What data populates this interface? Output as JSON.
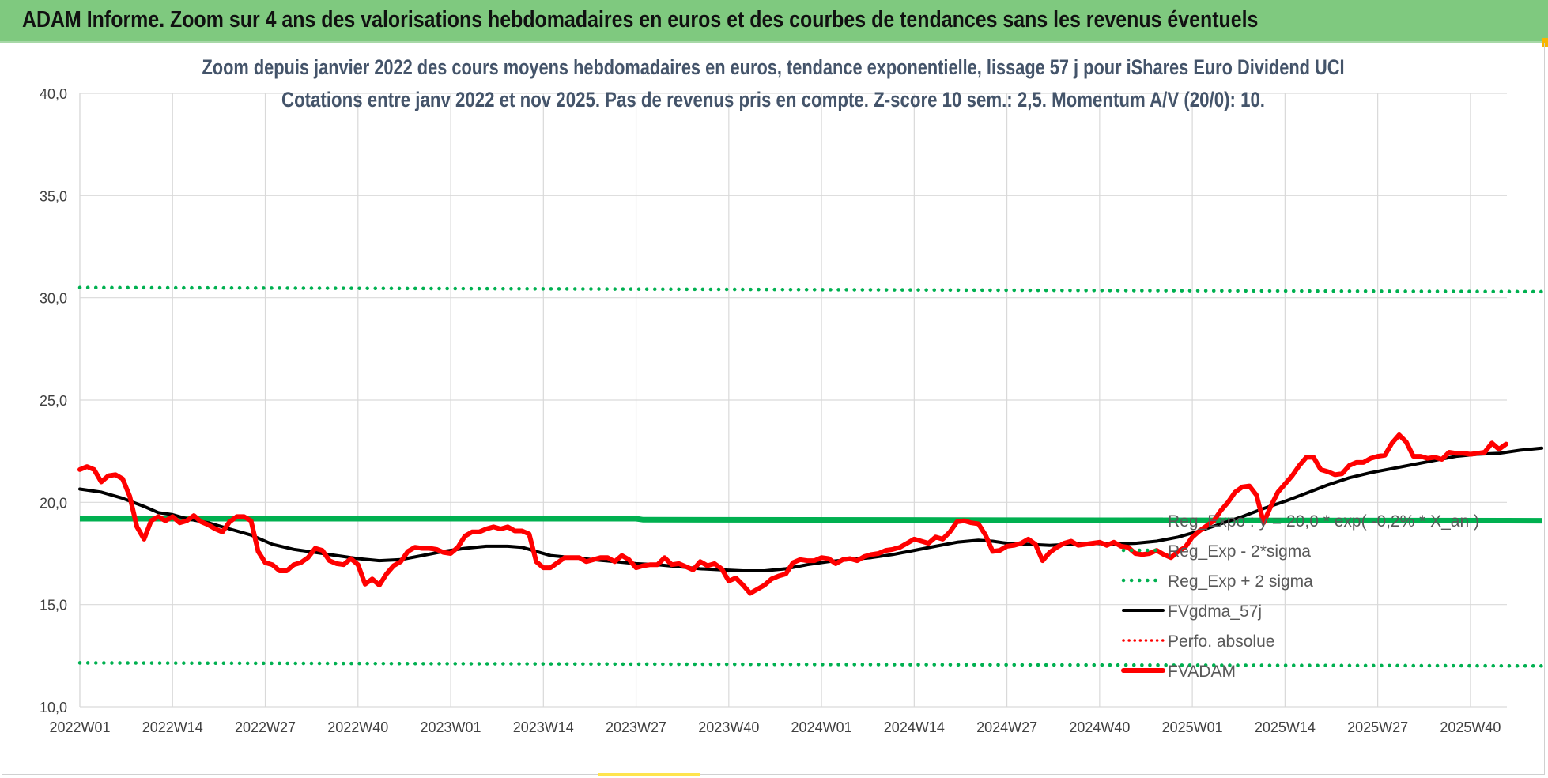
{
  "page": {
    "banner_title": "ADAM Informe. Zoom sur 4 ans des valorisations hebdomadaires en euros et des courbes de tendances sans les revenus éventuels"
  },
  "colors": {
    "banner_bg": "#7fc97f",
    "reg_expo": "#00b050",
    "sigma_lines": "#00b050",
    "moving_avg": "#000000",
    "perfo": "#ff0000",
    "price": "#ff0000",
    "title_text": "#44546a",
    "grid": "#d9d9d9"
  },
  "chart_data": {
    "type": "line",
    "title_line1": "Zoom depuis janvier 2022 des cours moyens hebdomadaires en euros, tendance exponentielle, lissage 57 j pour iShares Euro Dividend UCI",
    "title_line2": "Cotations entre janv 2022 et nov 2025. Pas de revenus pris en compte. Z-score 10 sem.: 2,5. Momentum A/V (20/0): 10.",
    "y_range": [
      10,
      40
    ],
    "y_ticks": [
      "10,0",
      "15,0",
      "20,0",
      "25,0",
      "30,0",
      "35,0",
      "40,0"
    ],
    "x_ticks": [
      "2022W01",
      "2022W14",
      "2022W27",
      "2022W40",
      "2023W01",
      "2023W14",
      "2023W27",
      "2023W40",
      "2024W01",
      "2024W14",
      "2024W27",
      "2024W40",
      "2025W01",
      "2025W14",
      "2025W27",
      "2025W40"
    ],
    "x_tick_week_index": [
      0,
      13,
      26,
      39,
      52,
      65,
      78,
      91,
      104,
      117,
      130,
      143,
      156,
      169,
      182,
      195
    ],
    "week_count": 206,
    "grid": true,
    "legend_position": "right-bottom",
    "series": [
      {
        "name": "Reg_Expo : y = 20,0 * exp( -0,2% * X_an )",
        "style": "solid",
        "weekly_values": [
          [
            0,
            19.2
          ],
          [
            78,
            19.2
          ],
          [
            79,
            19.15
          ],
          [
            205,
            19.1
          ]
        ]
      },
      {
        "name": "Reg_Exp - 2*sigma",
        "style": "dotted",
        "weekly_values": [
          [
            0,
            12.15
          ],
          [
            205,
            12.0
          ]
        ]
      },
      {
        "name": "Reg_Exp + 2 sigma",
        "style": "dotted",
        "weekly_values": [
          [
            0,
            30.5
          ],
          [
            205,
            30.3
          ]
        ]
      },
      {
        "name": "FVgdma_57j",
        "style": "solid",
        "weekly_values": [
          [
            0,
            20.65
          ],
          [
            3,
            20.5
          ],
          [
            6,
            20.2
          ],
          [
            9,
            19.8
          ],
          [
            11,
            19.5
          ],
          [
            13,
            19.4
          ],
          [
            15,
            19.2
          ],
          [
            18,
            19.0
          ],
          [
            21,
            18.7
          ],
          [
            24,
            18.4
          ],
          [
            27,
            17.95
          ],
          [
            30,
            17.7
          ],
          [
            33,
            17.55
          ],
          [
            36,
            17.4
          ],
          [
            39,
            17.25
          ],
          [
            42,
            17.15
          ],
          [
            45,
            17.2
          ],
          [
            48,
            17.4
          ],
          [
            51,
            17.6
          ],
          [
            54,
            17.75
          ],
          [
            57,
            17.85
          ],
          [
            60,
            17.85
          ],
          [
            62,
            17.8
          ],
          [
            64,
            17.6
          ],
          [
            66,
            17.4
          ],
          [
            69,
            17.3
          ],
          [
            72,
            17.2
          ],
          [
            75,
            17.1
          ],
          [
            78,
            17.0
          ],
          [
            81,
            16.95
          ],
          [
            84,
            16.85
          ],
          [
            87,
            16.75
          ],
          [
            90,
            16.7
          ],
          [
            93,
            16.65
          ],
          [
            96,
            16.65
          ],
          [
            99,
            16.75
          ],
          [
            102,
            16.95
          ],
          [
            105,
            17.1
          ],
          [
            108,
            17.2
          ],
          [
            111,
            17.3
          ],
          [
            114,
            17.45
          ],
          [
            117,
            17.65
          ],
          [
            120,
            17.85
          ],
          [
            123,
            18.05
          ],
          [
            126,
            18.15
          ],
          [
            128,
            18.1
          ],
          [
            130,
            18.0
          ],
          [
            133,
            17.95
          ],
          [
            136,
            17.9
          ],
          [
            139,
            17.95
          ],
          [
            142,
            18.0
          ],
          [
            145,
            17.95
          ],
          [
            148,
            18.0
          ],
          [
            151,
            18.1
          ],
          [
            154,
            18.3
          ],
          [
            157,
            18.6
          ],
          [
            160,
            18.95
          ],
          [
            163,
            19.3
          ],
          [
            166,
            19.7
          ],
          [
            169,
            20.05
          ],
          [
            172,
            20.45
          ],
          [
            175,
            20.85
          ],
          [
            178,
            21.2
          ],
          [
            181,
            21.45
          ],
          [
            184,
            21.65
          ],
          [
            187,
            21.85
          ],
          [
            190,
            22.05
          ],
          [
            193,
            22.25
          ],
          [
            196,
            22.35
          ],
          [
            199,
            22.4
          ],
          [
            202,
            22.55
          ],
          [
            205,
            22.65
          ]
        ]
      },
      {
        "name": "Perfo. absolue",
        "style": "dotted",
        "weekly_values": []
      },
      {
        "name": "FVADAM",
        "style": "solid",
        "weekly_values": [
          [
            0,
            21.6
          ],
          [
            1,
            21.75
          ],
          [
            2,
            21.6
          ],
          [
            3,
            21.0
          ],
          [
            4,
            21.3
          ],
          [
            5,
            21.35
          ],
          [
            6,
            21.15
          ],
          [
            7,
            20.3
          ],
          [
            8,
            18.8
          ],
          [
            9,
            18.2
          ],
          [
            10,
            19.1
          ],
          [
            11,
            19.3
          ],
          [
            12,
            19.1
          ],
          [
            13,
            19.3
          ],
          [
            14,
            19.0
          ],
          [
            15,
            19.1
          ],
          [
            16,
            19.35
          ],
          [
            17,
            19.05
          ],
          [
            18,
            18.9
          ],
          [
            19,
            18.7
          ],
          [
            20,
            18.55
          ],
          [
            21,
            19.05
          ],
          [
            22,
            19.3
          ],
          [
            23,
            19.3
          ],
          [
            24,
            19.1
          ],
          [
            25,
            17.6
          ],
          [
            26,
            17.05
          ],
          [
            27,
            16.95
          ],
          [
            28,
            16.65
          ],
          [
            29,
            16.65
          ],
          [
            30,
            16.95
          ],
          [
            31,
            17.05
          ],
          [
            32,
            17.3
          ],
          [
            33,
            17.75
          ],
          [
            34,
            17.65
          ],
          [
            35,
            17.15
          ],
          [
            36,
            17.0
          ],
          [
            37,
            16.95
          ],
          [
            38,
            17.25
          ],
          [
            39,
            16.95
          ],
          [
            40,
            16.0
          ],
          [
            41,
            16.25
          ],
          [
            42,
            15.95
          ],
          [
            43,
            16.5
          ],
          [
            44,
            16.9
          ],
          [
            45,
            17.1
          ],
          [
            46,
            17.6
          ],
          [
            47,
            17.8
          ],
          [
            48,
            17.75
          ],
          [
            49,
            17.75
          ],
          [
            50,
            17.7
          ],
          [
            51,
            17.55
          ],
          [
            52,
            17.5
          ],
          [
            53,
            17.8
          ],
          [
            54,
            18.35
          ],
          [
            55,
            18.55
          ],
          [
            56,
            18.55
          ],
          [
            57,
            18.7
          ],
          [
            58,
            18.8
          ],
          [
            59,
            18.7
          ],
          [
            60,
            18.8
          ],
          [
            61,
            18.6
          ],
          [
            62,
            18.6
          ],
          [
            63,
            18.45
          ],
          [
            64,
            17.1
          ],
          [
            65,
            16.8
          ],
          [
            66,
            16.8
          ],
          [
            67,
            17.05
          ],
          [
            68,
            17.3
          ],
          [
            69,
            17.3
          ],
          [
            70,
            17.3
          ],
          [
            71,
            17.1
          ],
          [
            72,
            17.2
          ],
          [
            73,
            17.3
          ],
          [
            74,
            17.3
          ],
          [
            75,
            17.1
          ],
          [
            76,
            17.4
          ],
          [
            77,
            17.2
          ],
          [
            78,
            16.8
          ],
          [
            79,
            16.9
          ],
          [
            80,
            16.95
          ],
          [
            81,
            16.95
          ],
          [
            82,
            17.3
          ],
          [
            83,
            16.95
          ],
          [
            84,
            17.0
          ],
          [
            85,
            16.85
          ],
          [
            86,
            16.7
          ],
          [
            87,
            17.1
          ],
          [
            88,
            16.9
          ],
          [
            89,
            17.0
          ],
          [
            90,
            16.75
          ],
          [
            91,
            16.15
          ],
          [
            92,
            16.3
          ],
          [
            93,
            15.95
          ],
          [
            94,
            15.55
          ],
          [
            95,
            15.75
          ],
          [
            96,
            15.95
          ],
          [
            97,
            16.25
          ],
          [
            98,
            16.4
          ],
          [
            99,
            16.5
          ],
          [
            100,
            17.05
          ],
          [
            101,
            17.2
          ],
          [
            102,
            17.15
          ],
          [
            103,
            17.15
          ],
          [
            104,
            17.3
          ],
          [
            105,
            17.25
          ],
          [
            106,
            17.0
          ],
          [
            107,
            17.2
          ],
          [
            108,
            17.25
          ],
          [
            109,
            17.15
          ],
          [
            110,
            17.35
          ],
          [
            111,
            17.45
          ],
          [
            112,
            17.5
          ],
          [
            113,
            17.65
          ],
          [
            114,
            17.7
          ],
          [
            115,
            17.8
          ],
          [
            116,
            18.0
          ],
          [
            117,
            18.2
          ],
          [
            118,
            18.1
          ],
          [
            119,
            18.0
          ],
          [
            120,
            18.3
          ],
          [
            121,
            18.2
          ],
          [
            122,
            18.55
          ],
          [
            123,
            19.05
          ],
          [
            124,
            19.1
          ],
          [
            125,
            19.0
          ],
          [
            126,
            18.95
          ],
          [
            127,
            18.4
          ],
          [
            128,
            17.6
          ],
          [
            129,
            17.65
          ],
          [
            130,
            17.85
          ],
          [
            131,
            17.9
          ],
          [
            132,
            18.0
          ],
          [
            133,
            18.2
          ],
          [
            134,
            17.95
          ],
          [
            135,
            17.15
          ],
          [
            136,
            17.55
          ],
          [
            137,
            17.8
          ],
          [
            138,
            18.0
          ],
          [
            139,
            18.1
          ],
          [
            140,
            17.9
          ],
          [
            141,
            17.95
          ],
          [
            142,
            18.0
          ],
          [
            143,
            18.05
          ],
          [
            144,
            17.9
          ],
          [
            145,
            18.05
          ],
          [
            146,
            17.85
          ],
          [
            147,
            17.8
          ],
          [
            148,
            17.5
          ],
          [
            149,
            17.45
          ],
          [
            150,
            17.5
          ],
          [
            151,
            17.65
          ],
          [
            152,
            17.45
          ],
          [
            153,
            17.3
          ],
          [
            154,
            17.6
          ],
          [
            155,
            17.8
          ],
          [
            156,
            18.3
          ],
          [
            157,
            18.6
          ],
          [
            158,
            18.85
          ],
          [
            159,
            19.1
          ],
          [
            160,
            19.6
          ],
          [
            161,
            20.0
          ],
          [
            162,
            20.5
          ],
          [
            163,
            20.75
          ],
          [
            164,
            20.8
          ],
          [
            165,
            20.35
          ],
          [
            166,
            19.0
          ],
          [
            167,
            19.8
          ],
          [
            168,
            20.5
          ],
          [
            169,
            20.9
          ],
          [
            170,
            21.3
          ],
          [
            171,
            21.8
          ],
          [
            172,
            22.2
          ],
          [
            173,
            22.2
          ],
          [
            174,
            21.6
          ],
          [
            175,
            21.5
          ],
          [
            176,
            21.35
          ],
          [
            177,
            21.4
          ],
          [
            178,
            21.8
          ],
          [
            179,
            21.95
          ],
          [
            180,
            21.95
          ],
          [
            181,
            22.15
          ],
          [
            182,
            22.25
          ],
          [
            183,
            22.3
          ],
          [
            184,
            22.9
          ],
          [
            185,
            23.3
          ],
          [
            186,
            22.95
          ],
          [
            187,
            22.25
          ],
          [
            188,
            22.25
          ],
          [
            189,
            22.15
          ],
          [
            190,
            22.2
          ],
          [
            191,
            22.1
          ],
          [
            192,
            22.45
          ],
          [
            193,
            22.4
          ],
          [
            194,
            22.4
          ],
          [
            195,
            22.35
          ],
          [
            196,
            22.4
          ],
          [
            197,
            22.45
          ],
          [
            198,
            22.9
          ],
          [
            199,
            22.6
          ],
          [
            200,
            22.85
          ]
        ]
      }
    ]
  }
}
